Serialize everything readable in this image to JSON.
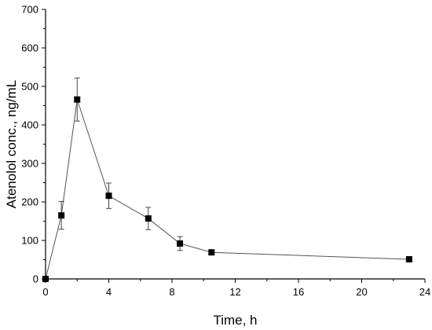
{
  "chart_data": {
    "type": "line",
    "title": "",
    "xlabel": "Time, h",
    "ylabel": "Atenolol conc., ng/mL",
    "xlim": [
      0,
      24
    ],
    "ylim": [
      0,
      700
    ],
    "xticks": [
      0,
      4,
      8,
      12,
      16,
      20,
      24
    ],
    "yticks": [
      0,
      100,
      200,
      300,
      400,
      500,
      600,
      700
    ],
    "grid": false,
    "series": [
      {
        "x": [
          0,
          1,
          2,
          4,
          6.5,
          8.5,
          10.5,
          23
        ],
        "y": [
          0,
          165,
          466,
          216,
          157,
          92,
          69,
          51
        ],
        "yerr": [
          0,
          36,
          56,
          33,
          29,
          18,
          0,
          0
        ],
        "marker": "square",
        "color": "#000000"
      }
    ]
  }
}
